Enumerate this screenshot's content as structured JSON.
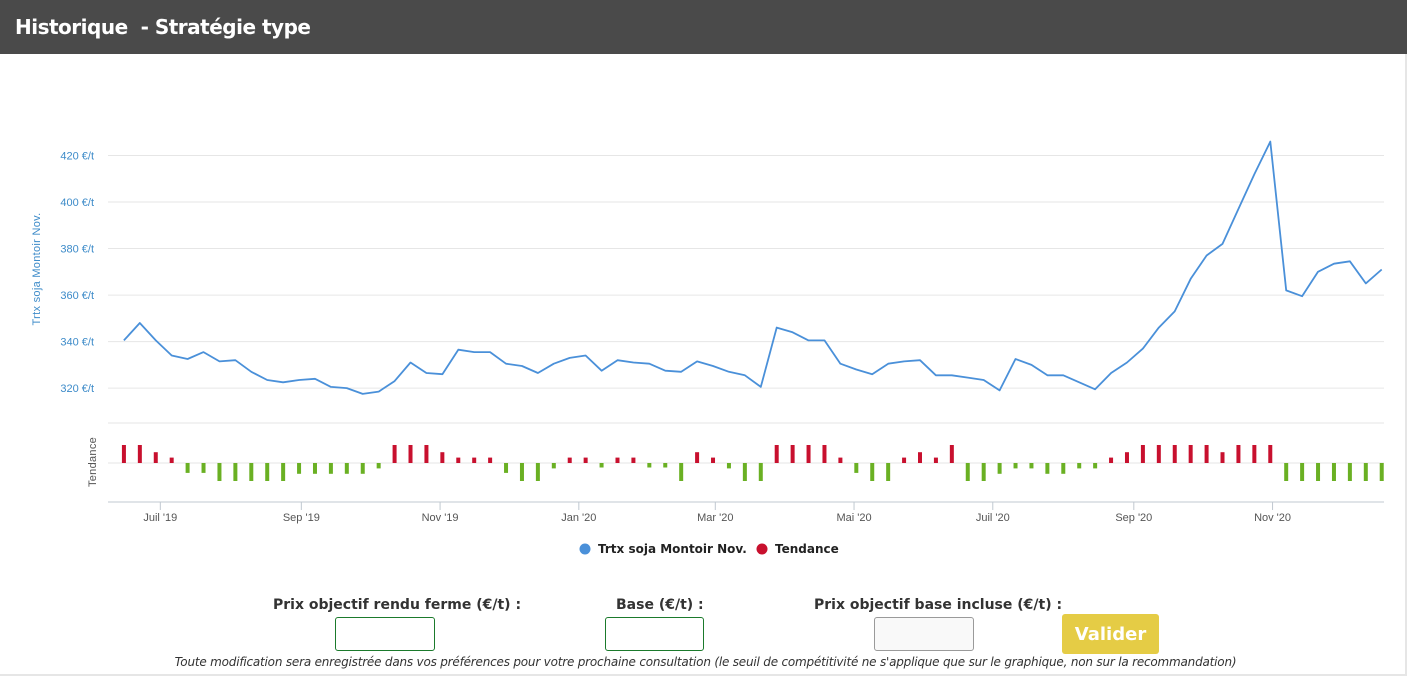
{
  "header": {
    "title": "Historique  - Stratégie type"
  },
  "colors": {
    "line": "#4a90d9",
    "up": "#c8102e",
    "down": "#6ab023",
    "header_bg": "#4a4a4a",
    "button": "#e5cc45",
    "input_border": "#1b7a2c"
  },
  "chart_data": {
    "type": "line",
    "ylabel": "Trtx soja Montoir Nov.",
    "trend_label": "Tendance",
    "yticks": [
      {
        "value": 320,
        "label": "320 €/t"
      },
      {
        "value": 340,
        "label": "340 €/t"
      },
      {
        "value": 360,
        "label": "360 €/t"
      },
      {
        "value": 380,
        "label": "380 €/t"
      },
      {
        "value": 400,
        "label": "400 €/t"
      },
      {
        "value": 420,
        "label": "420 €/t"
      }
    ],
    "ylim": [
      305,
      440
    ],
    "xlim": [
      "2019-06-08",
      "2020-12-20"
    ],
    "xticks": [
      {
        "date": "2019-07-01",
        "label": "Juil '19"
      },
      {
        "date": "2019-09-01",
        "label": "Sep '19"
      },
      {
        "date": "2019-11-01",
        "label": "Nov '19"
      },
      {
        "date": "2020-01-01",
        "label": "Jan '20"
      },
      {
        "date": "2020-03-01",
        "label": "Mar '20"
      },
      {
        "date": "2020-05-01",
        "label": "Mai '20"
      },
      {
        "date": "2020-07-01",
        "label": "Juil '20"
      },
      {
        "date": "2020-09-01",
        "label": "Sep '20"
      },
      {
        "date": "2020-11-01",
        "label": "Nov '20"
      }
    ],
    "series": [
      {
        "name": "Trtx soja Montoir Nov.",
        "points": [
          [
            "2019-06-15",
            340.5
          ],
          [
            "2019-06-22",
            348
          ],
          [
            "2019-06-29",
            340.5
          ],
          [
            "2019-07-06",
            334
          ],
          [
            "2019-07-13",
            332.5
          ],
          [
            "2019-07-20",
            335.5
          ],
          [
            "2019-07-27",
            331.5
          ],
          [
            "2019-08-03",
            332
          ],
          [
            "2019-08-10",
            327
          ],
          [
            "2019-08-17",
            323.5
          ],
          [
            "2019-08-24",
            322.5
          ],
          [
            "2019-08-31",
            323.5
          ],
          [
            "2019-09-07",
            324
          ],
          [
            "2019-09-14",
            320.5
          ],
          [
            "2019-09-21",
            320
          ],
          [
            "2019-09-28",
            317.5
          ],
          [
            "2019-10-05",
            318.5
          ],
          [
            "2019-10-12",
            323
          ],
          [
            "2019-10-19",
            331
          ],
          [
            "2019-10-26",
            326.5
          ],
          [
            "2019-11-02",
            326
          ],
          [
            "2019-11-09",
            336.5
          ],
          [
            "2019-11-16",
            335.5
          ],
          [
            "2019-11-23",
            335.5
          ],
          [
            "2019-11-30",
            330.5
          ],
          [
            "2019-12-07",
            329.5
          ],
          [
            "2019-12-14",
            326.5
          ],
          [
            "2019-12-21",
            330.5
          ],
          [
            "2019-12-28",
            333
          ],
          [
            "2020-01-04",
            334
          ],
          [
            "2020-01-11",
            327.5
          ],
          [
            "2020-01-18",
            332
          ],
          [
            "2020-01-25",
            331
          ],
          [
            "2020-02-01",
            330.5
          ],
          [
            "2020-02-08",
            327.5
          ],
          [
            "2020-02-15",
            327
          ],
          [
            "2020-02-22",
            331.5
          ],
          [
            "2020-02-29",
            329.5
          ],
          [
            "2020-03-07",
            327
          ],
          [
            "2020-03-14",
            325.5
          ],
          [
            "2020-03-21",
            320.5
          ],
          [
            "2020-03-28",
            346
          ],
          [
            "2020-04-04",
            344
          ],
          [
            "2020-04-11",
            340.5
          ],
          [
            "2020-04-18",
            340.5
          ],
          [
            "2020-04-25",
            330.5
          ],
          [
            "2020-05-02",
            328
          ],
          [
            "2020-05-09",
            326
          ],
          [
            "2020-05-16",
            330.5
          ],
          [
            "2020-05-23",
            331.5
          ],
          [
            "2020-05-30",
            332
          ],
          [
            "2020-06-06",
            325.5
          ],
          [
            "2020-06-13",
            325.5
          ],
          [
            "2020-06-20",
            324.5
          ],
          [
            "2020-06-27",
            323.5
          ],
          [
            "2020-07-04",
            319
          ],
          [
            "2020-07-11",
            332.5
          ],
          [
            "2020-07-18",
            330
          ],
          [
            "2020-07-25",
            325.5
          ],
          [
            "2020-08-01",
            325.5
          ],
          [
            "2020-08-08",
            322.5
          ],
          [
            "2020-08-15",
            319.5
          ],
          [
            "2020-08-22",
            326.5
          ],
          [
            "2020-08-29",
            331
          ],
          [
            "2020-09-05",
            337
          ],
          [
            "2020-09-12",
            346
          ],
          [
            "2020-09-19",
            353
          ],
          [
            "2020-09-26",
            367
          ],
          [
            "2020-10-03",
            377
          ],
          [
            "2020-10-10",
            382
          ],
          [
            "2020-10-17",
            397
          ],
          [
            "2020-10-24",
            412
          ],
          [
            "2020-10-31",
            426
          ],
          [
            "2020-11-07",
            362
          ],
          [
            "2020-11-14",
            359.5
          ],
          [
            "2020-11-21",
            370
          ],
          [
            "2020-11-28",
            373.5
          ],
          [
            "2020-12-05",
            374.5
          ],
          [
            "2020-12-12",
            365
          ],
          [
            "2020-12-19",
            371
          ]
        ]
      },
      {
        "name": "Tendance",
        "points": [
          [
            "2019-06-15",
            1
          ],
          [
            "2019-06-22",
            1
          ],
          [
            "2019-06-29",
            0.6
          ],
          [
            "2019-07-06",
            0.3
          ],
          [
            "2019-07-13",
            -0.55
          ],
          [
            "2019-07-20",
            -0.55
          ],
          [
            "2019-07-27",
            -1
          ],
          [
            "2019-08-03",
            -1
          ],
          [
            "2019-08-10",
            -1
          ],
          [
            "2019-08-17",
            -1
          ],
          [
            "2019-08-24",
            -1
          ],
          [
            "2019-08-31",
            -0.6
          ],
          [
            "2019-09-07",
            -0.6
          ],
          [
            "2019-09-14",
            -0.6
          ],
          [
            "2019-09-21",
            -0.6
          ],
          [
            "2019-09-28",
            -0.6
          ],
          [
            "2019-10-05",
            -0.3
          ],
          [
            "2019-10-12",
            1
          ],
          [
            "2019-10-19",
            1
          ],
          [
            "2019-10-26",
            1
          ],
          [
            "2019-11-02",
            0.6
          ],
          [
            "2019-11-09",
            0.3
          ],
          [
            "2019-11-16",
            0.3
          ],
          [
            "2019-11-23",
            0.3
          ],
          [
            "2019-11-30",
            -0.55
          ],
          [
            "2019-12-07",
            -1
          ],
          [
            "2019-12-14",
            -1
          ],
          [
            "2019-12-21",
            -0.3
          ],
          [
            "2019-12-28",
            0.3
          ],
          [
            "2020-01-04",
            0.3
          ],
          [
            "2020-01-11",
            -0.25
          ],
          [
            "2020-01-18",
            0.3
          ],
          [
            "2020-01-25",
            0.3
          ],
          [
            "2020-02-01",
            -0.25
          ],
          [
            "2020-02-08",
            -0.25
          ],
          [
            "2020-02-15",
            -1
          ],
          [
            "2020-02-22",
            0.6
          ],
          [
            "2020-02-29",
            0.3
          ],
          [
            "2020-03-07",
            -0.3
          ],
          [
            "2020-03-14",
            -1
          ],
          [
            "2020-03-21",
            -1
          ],
          [
            "2020-03-28",
            1
          ],
          [
            "2020-04-04",
            1
          ],
          [
            "2020-04-11",
            1
          ],
          [
            "2020-04-18",
            1
          ],
          [
            "2020-04-25",
            0.3
          ],
          [
            "2020-05-02",
            -0.55
          ],
          [
            "2020-05-09",
            -1
          ],
          [
            "2020-05-16",
            -1
          ],
          [
            "2020-05-23",
            0.3
          ],
          [
            "2020-05-30",
            0.6
          ],
          [
            "2020-06-06",
            0.3
          ],
          [
            "2020-06-13",
            1
          ],
          [
            "2020-06-20",
            -1
          ],
          [
            "2020-06-27",
            -1
          ],
          [
            "2020-07-04",
            -0.6
          ],
          [
            "2020-07-11",
            -0.3
          ],
          [
            "2020-07-18",
            -0.3
          ],
          [
            "2020-07-25",
            -0.6
          ],
          [
            "2020-08-01",
            -0.6
          ],
          [
            "2020-08-08",
            -0.3
          ],
          [
            "2020-08-15",
            -0.3
          ],
          [
            "2020-08-22",
            0.3
          ],
          [
            "2020-08-29",
            0.6
          ],
          [
            "2020-09-05",
            1
          ],
          [
            "2020-09-12",
            1
          ],
          [
            "2020-09-19",
            1
          ],
          [
            "2020-09-26",
            1
          ],
          [
            "2020-10-03",
            1
          ],
          [
            "2020-10-10",
            0.6
          ],
          [
            "2020-10-17",
            1
          ],
          [
            "2020-10-24",
            1
          ],
          [
            "2020-10-31",
            1
          ],
          [
            "2020-11-07",
            -1
          ],
          [
            "2020-11-14",
            -1
          ],
          [
            "2020-11-21",
            -1
          ],
          [
            "2020-11-28",
            -1
          ],
          [
            "2020-12-05",
            -1
          ],
          [
            "2020-12-12",
            -1
          ],
          [
            "2020-12-19",
            -1
          ]
        ]
      }
    ],
    "legend": [
      {
        "label": "Trtx soja Montoir Nov.",
        "color": "#4a90d9"
      },
      {
        "label": "Tendance",
        "color": "#c8102e"
      }
    ],
    "grid": true,
    "legend_position": "bottom-center"
  },
  "form": {
    "label_prix_ferme": "Prix objectif rendu ferme (€/t) :",
    "label_base": "Base (€/t) :",
    "label_prix_base": "Prix objectif base incluse (€/t) :",
    "value_prix_ferme": "",
    "value_base": "",
    "value_prix_base": "",
    "button_label": "Valider",
    "note": "Toute modification sera enregistrée dans vos préférences pour votre prochaine consultation (le seuil de compétitivité ne s'applique que sur le graphique, non sur la recommandation)"
  }
}
